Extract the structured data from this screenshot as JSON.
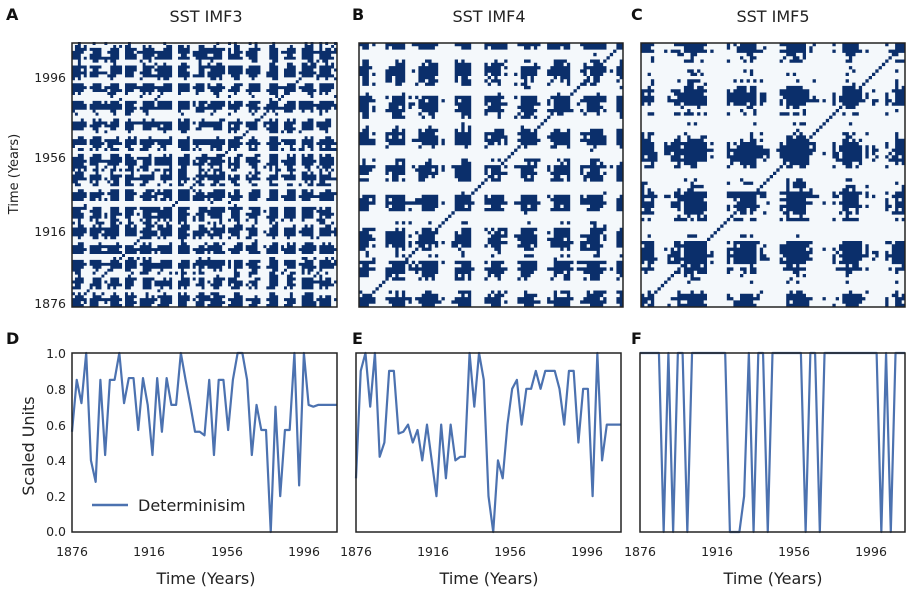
{
  "figure": {
    "colors": {
      "recurrence": "#0b2f6b",
      "recurrence_bg": "#f4f8fb",
      "line": "#4c72b0",
      "frame": "#222222"
    }
  },
  "chart_data": [
    {
      "type": "heatmap",
      "panel_label": "A",
      "title": "SST IMF3",
      "ylabel": "Time (Years)",
      "yticks": [
        "1996",
        "1956",
        "1916",
        "1876"
      ],
      "axis_range": [
        1876,
        2016
      ],
      "density": 0.5,
      "period": 6
    },
    {
      "type": "heatmap",
      "panel_label": "B",
      "title": "SST IMF4",
      "ylabel": "",
      "yticks": [],
      "axis_range": [
        1876,
        2016
      ],
      "density": 0.45,
      "period": 10
    },
    {
      "type": "heatmap",
      "panel_label": "C",
      "title": "SST IMF5",
      "ylabel": "",
      "yticks": [],
      "axis_range": [
        1876,
        2016
      ],
      "density": 0.4,
      "period": 16
    },
    {
      "type": "line",
      "panel_label": "D",
      "title": "",
      "xlabel": "Time (Years)",
      "ylabel": "Scaled Units",
      "xlim": [
        1876,
        2016
      ],
      "ylim": [
        0,
        1
      ],
      "xticks": [
        "1876",
        "1916",
        "1956",
        "1996"
      ],
      "yticks": [
        "0.0",
        "0.2",
        "0.4",
        "0.6",
        "0.8",
        "1.0"
      ],
      "legend_label": "Determinisim",
      "legend_loc": "lower-left",
      "series": [
        {
          "name": "Determinisim",
          "x": [
            1876,
            1878.5,
            1881,
            1883.5,
            1886,
            1888.5,
            1891,
            1893.5,
            1896,
            1898.5,
            1901,
            1903.5,
            1906,
            1908.5,
            1911,
            1913.5,
            1916,
            1918.5,
            1921,
            1923.5,
            1926,
            1928.5,
            1931,
            1933.5,
            1936,
            1938.5,
            1941,
            1943.5,
            1946,
            1948.5,
            1951,
            1953.5,
            1956,
            1958.5,
            1961,
            1963.5,
            1966,
            1968.5,
            1971,
            1973.5,
            1976,
            1978.5,
            1981,
            1983.5,
            1986,
            1988.5,
            1991,
            1993.5,
            1996,
            1998.5,
            2001,
            2003.5,
            2006,
            2008.5,
            2011,
            2013.5,
            2016
          ],
          "y": [
            0.56,
            0.85,
            0.72,
            1.0,
            0.4,
            0.28,
            0.85,
            0.43,
            0.85,
            0.85,
            1.0,
            0.72,
            0.86,
            0.86,
            0.57,
            0.86,
            0.71,
            0.43,
            0.86,
            0.56,
            0.86,
            0.71,
            0.71,
            1.0,
            0.85,
            0.71,
            0.56,
            0.56,
            0.54,
            0.85,
            0.43,
            0.85,
            0.85,
            0.57,
            0.85,
            1.0,
            1.0,
            0.85,
            0.43,
            0.71,
            0.57,
            0.57,
            0.0,
            0.7,
            0.2,
            0.57,
            0.57,
            1.0,
            0.26,
            1.0,
            0.71,
            0.7,
            0.71,
            0.71,
            0.71,
            0.71,
            0.71
          ]
        }
      ]
    },
    {
      "type": "line",
      "panel_label": "E",
      "title": "",
      "xlabel": "Time (Years)",
      "ylabel": "",
      "xlim": [
        1876,
        2016
      ],
      "ylim": [
        0,
        1
      ],
      "xticks": [
        "1876",
        "1916",
        "1956",
        "1996"
      ],
      "yticks": [],
      "series": [
        {
          "name": "Determinisim",
          "x": [
            1876,
            1878.5,
            1881,
            1883.5,
            1886,
            1888.5,
            1891,
            1893.5,
            1896,
            1898.5,
            1901,
            1903.5,
            1906,
            1908.5,
            1911,
            1913.5,
            1916,
            1918.5,
            1921,
            1923.5,
            1926,
            1928.5,
            1931,
            1933.5,
            1936,
            1938.5,
            1941,
            1943.5,
            1946,
            1948.5,
            1951,
            1953.5,
            1956,
            1958.5,
            1961,
            1963.5,
            1966,
            1968.5,
            1971,
            1973.5,
            1976,
            1978.5,
            1981,
            1983.5,
            1986,
            1988.5,
            1991,
            1993.5,
            1996,
            1998.5,
            2001,
            2003.5,
            2006,
            2008.5,
            2011,
            2013.5,
            2016
          ],
          "y": [
            0.3,
            0.9,
            1.0,
            0.7,
            1.0,
            0.42,
            0.5,
            0.9,
            0.9,
            0.55,
            0.56,
            0.6,
            0.5,
            0.57,
            0.4,
            0.6,
            0.4,
            0.2,
            0.6,
            0.3,
            0.6,
            0.4,
            0.42,
            0.42,
            1.0,
            0.7,
            1.0,
            0.85,
            0.2,
            0.0,
            0.4,
            0.3,
            0.6,
            0.8,
            0.85,
            0.6,
            0.8,
            0.8,
            0.9,
            0.8,
            0.9,
            0.9,
            0.9,
            0.8,
            0.6,
            0.9,
            0.9,
            0.5,
            0.8,
            0.8,
            0.2,
            1.0,
            0.4,
            0.6,
            0.6,
            0.6,
            0.6
          ]
        }
      ]
    },
    {
      "type": "line",
      "panel_label": "F",
      "title": "",
      "xlabel": "Time (Years)",
      "ylabel": "",
      "xlim": [
        1876,
        2016
      ],
      "ylim": [
        0,
        1
      ],
      "xticks": [
        "1876",
        "1916",
        "1956",
        "1996"
      ],
      "yticks": [],
      "series": [
        {
          "name": "Determinisim",
          "x": [
            1876,
            1878.5,
            1881,
            1883.5,
            1886,
            1888.5,
            1891,
            1893.5,
            1896,
            1898.5,
            1901,
            1903.5,
            1906,
            1908.5,
            1911,
            1913.5,
            1916,
            1918.5,
            1921,
            1923.5,
            1926,
            1928.5,
            1931,
            1933.5,
            1936,
            1938.5,
            1941,
            1943.5,
            1946,
            1948.5,
            1951,
            1953.5,
            1956,
            1958.5,
            1961,
            1963.5,
            1966,
            1968.5,
            1971,
            1973.5,
            1976,
            1978.5,
            1981,
            1983.5,
            1986,
            1988.5,
            1991,
            1993.5,
            1996,
            1998.5,
            2001,
            2003.5,
            2006,
            2008.5,
            2011,
            2013.5,
            2016
          ],
          "y": [
            1.0,
            1.0,
            1.0,
            1.0,
            1.0,
            0.0,
            1.0,
            0.0,
            1.0,
            1.0,
            0.0,
            1.0,
            1.0,
            1.0,
            1.0,
            1.0,
            1.0,
            1.0,
            1.0,
            0.0,
            0.0,
            0.0,
            0.2,
            1.0,
            0.0,
            1.0,
            1.0,
            0.0,
            1.0,
            1.0,
            1.0,
            1.0,
            1.0,
            1.0,
            1.0,
            0.0,
            1.0,
            1.0,
            0.0,
            1.0,
            1.0,
            1.0,
            1.0,
            1.0,
            1.0,
            1.0,
            1.0,
            1.0,
            1.0,
            1.0,
            1.0,
            0.0,
            1.0,
            0.0,
            1.0,
            1.0,
            1.0
          ]
        }
      ]
    }
  ]
}
